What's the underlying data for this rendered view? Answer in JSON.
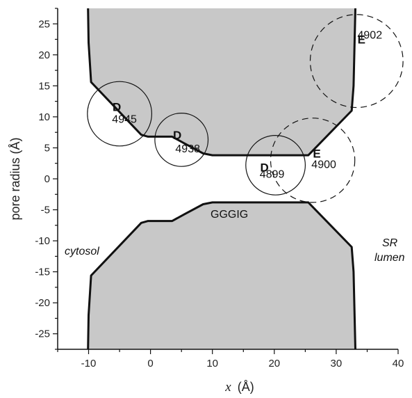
{
  "chart_data": {
    "type": "area",
    "xlabel_symbol": "x",
    "xlabel_unit": "(Å)",
    "ylabel": "pore radius (Å)",
    "xlim": [
      -15,
      40
    ],
    "ylim": [
      -27.5,
      27.5
    ],
    "xticks": [
      -10,
      0,
      10,
      20,
      30,
      40
    ],
    "yticks": [
      -25,
      -20,
      -15,
      -10,
      -5,
      0,
      5,
      10,
      15,
      20,
      25
    ],
    "grid": false,
    "fill_color": "#c8c8c8",
    "outline_color": "#111111",
    "upper_wall_profile": [
      {
        "x": -10.1,
        "y": 27.5
      },
      {
        "x": -10.0,
        "y": 22.0
      },
      {
        "x": -9.6,
        "y": 15.6
      },
      {
        "x": -1.5,
        "y": 7.1
      },
      {
        "x": -0.4,
        "y": 6.8
      },
      {
        "x": 3.5,
        "y": 6.8
      },
      {
        "x": 5.5,
        "y": 5.7
      },
      {
        "x": 8.5,
        "y": 4.1
      },
      {
        "x": 10.0,
        "y": 3.8
      },
      {
        "x": 25.5,
        "y": 3.8
      },
      {
        "x": 32.5,
        "y": 11.0
      },
      {
        "x": 32.8,
        "y": 15.0
      },
      {
        "x": 33.1,
        "y": 27.5
      }
    ],
    "lower_wall_profile": [
      {
        "x": -10.1,
        "y": -27.5
      },
      {
        "x": -10.0,
        "y": -22.0
      },
      {
        "x": -9.6,
        "y": -15.6
      },
      {
        "x": -1.5,
        "y": -7.1
      },
      {
        "x": -0.4,
        "y": -6.8
      },
      {
        "x": 3.5,
        "y": -6.8
      },
      {
        "x": 5.5,
        "y": -5.7
      },
      {
        "x": 8.5,
        "y": -4.1
      },
      {
        "x": 10.0,
        "y": -3.8
      },
      {
        "x": 25.5,
        "y": -3.8
      },
      {
        "x": 32.5,
        "y": -11.0
      },
      {
        "x": 32.8,
        "y": -15.0
      },
      {
        "x": 33.1,
        "y": -27.5
      }
    ],
    "residues": [
      {
        "letter": "D",
        "number": "4945",
        "cx": -5.0,
        "cy": 10.5,
        "r": 5.2,
        "style": "solid"
      },
      {
        "letter": "D",
        "number": "4938",
        "cx": 5.0,
        "cy": 6.3,
        "r": 4.3,
        "style": "solid"
      },
      {
        "letter": "D",
        "number": "4899",
        "cx": 20.2,
        "cy": 2.2,
        "r": 4.8,
        "style": "solid"
      },
      {
        "letter": "E",
        "number": "4900",
        "cx": 26.2,
        "cy": 3.0,
        "r": 6.8,
        "style": "dashed"
      },
      {
        "letter": "E",
        "number": "4902",
        "cx": 33.3,
        "cy": 19.0,
        "r": 7.5,
        "style": "dashed"
      }
    ],
    "annotations": [
      {
        "id": "cytosol",
        "text": "cytosol"
      },
      {
        "id": "sr",
        "text": "SR"
      },
      {
        "id": "lumen",
        "text": "lumen"
      },
      {
        "id": "motif",
        "text": "GGGIG"
      }
    ]
  }
}
